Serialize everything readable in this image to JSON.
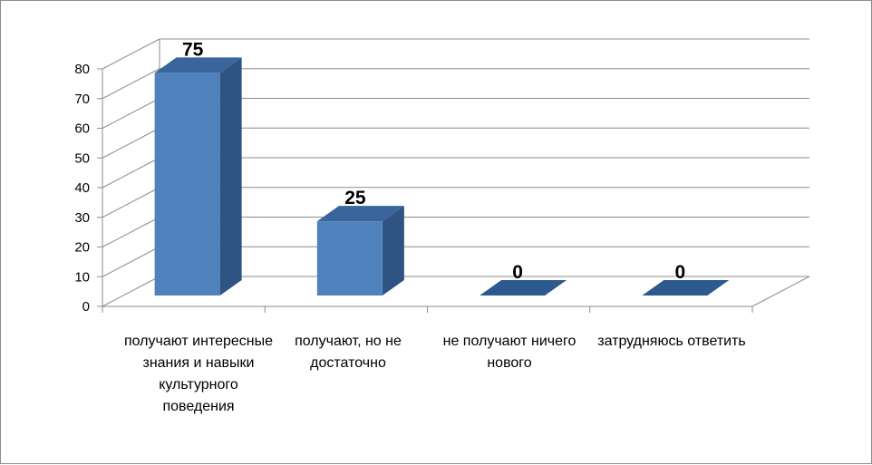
{
  "chart_data": {
    "type": "bar",
    "style": "3d-column",
    "categories": [
      "получают интересные знания и навыки культурного поведения",
      "получают, но не достаточно",
      "не получают ничего нового",
      "затрудняюсь ответить"
    ],
    "values": [
      75,
      25,
      0,
      0
    ],
    "data_labels": [
      "75",
      "25",
      "0",
      "0"
    ],
    "yticks": [
      "0",
      "10",
      "20",
      "30",
      "40",
      "50",
      "60",
      "70",
      "80"
    ],
    "ylim": [
      0,
      80
    ],
    "grid": true,
    "legend": "none",
    "title": "",
    "xlabel": "",
    "ylabel": "",
    "colors": {
      "front": "#4f81bd",
      "side": "#2f5483",
      "top": "#39659c",
      "zero": "#2d5a8e",
      "grid": "#8c8c8c"
    }
  }
}
